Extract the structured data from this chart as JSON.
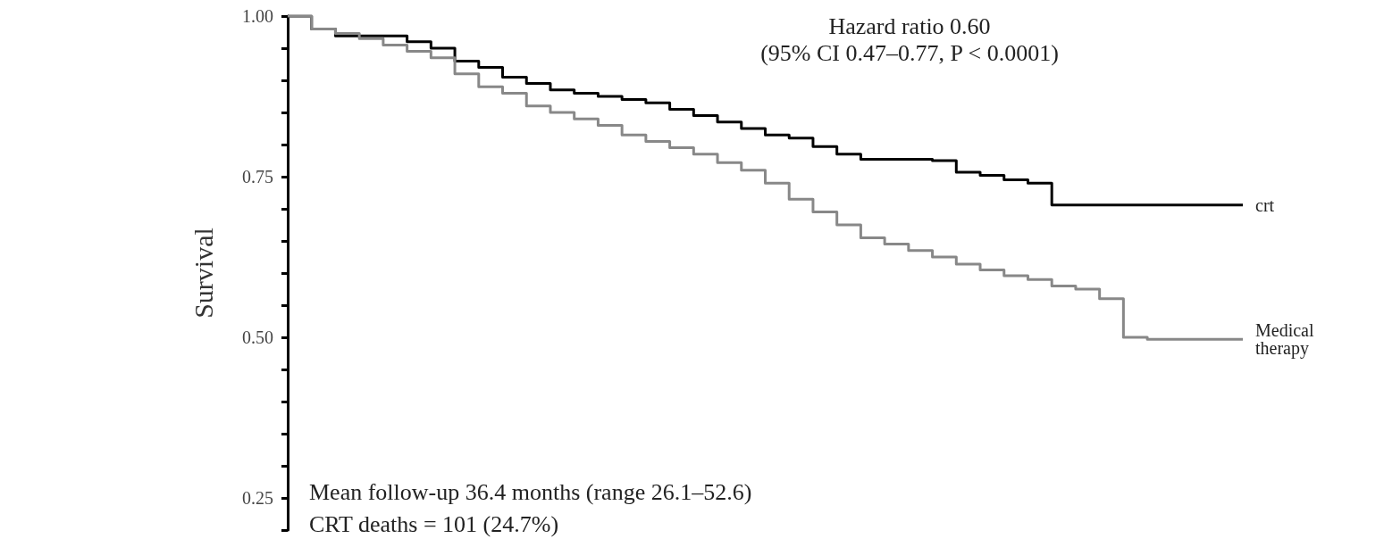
{
  "chart_data": {
    "type": "step",
    "ylabel": "Survival",
    "annotations": [
      "Hazard ratio 0.60",
      "(95% CI 0.47–0.77, P < 0.0001)",
      "Mean follow-up 36.4 months (range 26.1–52.6)",
      "CRT deaths = 101 (24.7%)"
    ],
    "categories": [
      null,
      null,
      null,
      null,
      null,
      null,
      null,
      null,
      null,
      null,
      null,
      null,
      null,
      null,
      null,
      null,
      null,
      null,
      null,
      null,
      null,
      null,
      null,
      null,
      null,
      null,
      null,
      null,
      null,
      null,
      null,
      null,
      null,
      null,
      null,
      null,
      null,
      null,
      null,
      null,
      null
    ],
    "series": [
      {
        "name": "crt",
        "color": "#000000",
        "values": [
          1.0,
          0.98,
          0.969,
          0.969,
          0.969,
          0.96,
          0.95,
          0.93,
          0.92,
          0.905,
          0.895,
          0.885,
          0.88,
          0.875,
          0.87,
          0.865,
          0.855,
          0.845,
          0.835,
          0.825,
          0.815,
          0.81,
          0.797,
          0.785,
          0.777,
          0.777,
          0.777,
          0.775,
          0.757,
          0.752,
          0.745,
          0.74,
          0.706,
          0.706,
          0.706,
          0.706,
          0.706,
          0.706,
          0.706,
          0.706,
          0.706
        ]
      },
      {
        "name": "Medical therapy",
        "color": "#888888",
        "values": [
          1.0,
          0.98,
          0.973,
          0.965,
          0.955,
          0.945,
          0.935,
          0.91,
          0.89,
          0.88,
          0.86,
          0.85,
          0.84,
          0.83,
          0.815,
          0.805,
          0.795,
          0.785,
          0.772,
          0.76,
          0.74,
          0.715,
          0.695,
          0.675,
          0.655,
          0.645,
          0.635,
          0.625,
          0.614,
          0.605,
          0.596,
          0.59,
          0.58,
          0.575,
          0.56,
          0.5,
          0.497,
          0.497,
          0.497,
          0.497,
          0.497
        ]
      }
    ],
    "ylim": [
      0.2,
      1.0
    ],
    "yticks": [
      {
        "value": 0.2,
        "label": null
      },
      0.25,
      {
        "value": 0.3,
        "label": null
      },
      {
        "value": 0.35,
        "label": null
      },
      {
        "value": 0.4,
        "label": null
      },
      {
        "value": 0.45,
        "label": null
      },
      {
        "value": 0.5,
        "label": "0.50"
      },
      {
        "value": 0.55,
        "label": null
      },
      {
        "value": 0.6,
        "label": null
      },
      {
        "value": 0.65,
        "label": null
      },
      {
        "value": 0.7,
        "label": null
      },
      0.75,
      {
        "value": 0.8,
        "label": null
      },
      {
        "value": 0.85,
        "label": null
      },
      {
        "value": 0.9,
        "label": null
      },
      {
        "value": 0.95,
        "label": null
      },
      {
        "value": 1.0,
        "label": "1.00"
      }
    ],
    "tick_labels": "y",
    "grid": false,
    "legend": false,
    "marker": "none",
    "line_style": "solid"
  }
}
